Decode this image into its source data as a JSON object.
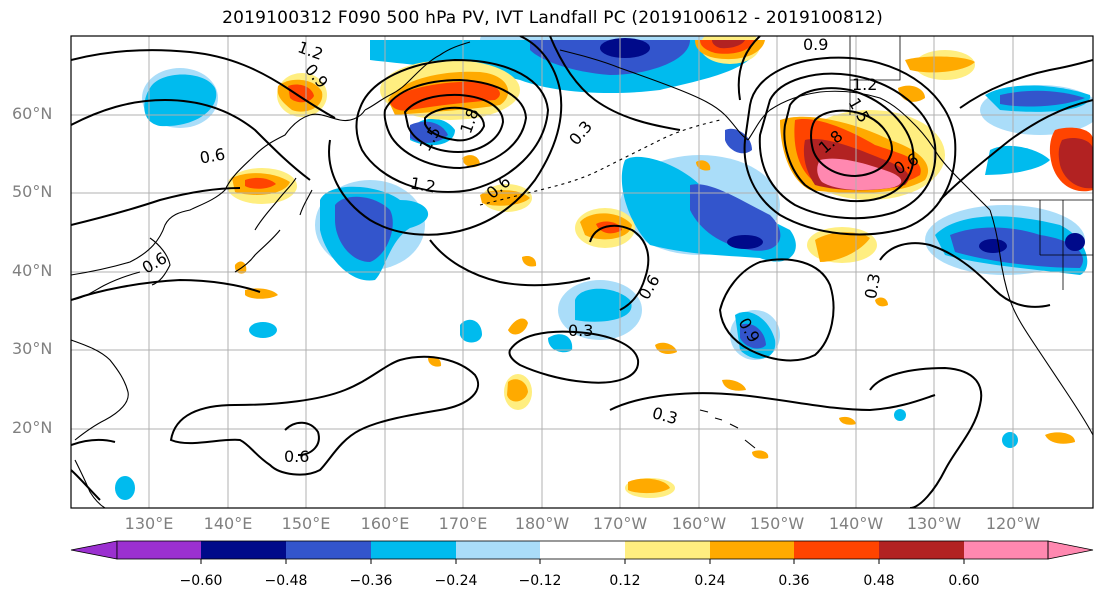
{
  "title": "2019100312 F090 500 hPa PV, IVT Landfall PC (2019100612 - 2019100812)",
  "lat_labels": [
    "60°N",
    "50°N",
    "40°N",
    "30°N",
    "20°N"
  ],
  "lon_labels": [
    "130°E",
    "140°E",
    "150°E",
    "160°E",
    "170°E",
    "180°W",
    "170°W",
    "160°W",
    "150°W",
    "140°W",
    "130°W",
    "120°W"
  ],
  "contour_labels": [
    "1.2",
    "0.9",
    "0.6",
    "1.8",
    "1.5",
    "1.2",
    "0.6",
    "0.3",
    "0.9",
    "1.2",
    "1.5",
    "1.8",
    "0.6",
    "0.6",
    "0.3",
    "0.6",
    "0.9",
    "0.3",
    "0.3",
    "0.6"
  ],
  "colorbar": {
    "ticks": [
      "−0.60",
      "−0.48",
      "−0.36",
      "−0.24",
      "−0.12",
      "0.12",
      "0.24",
      "0.36",
      "0.48",
      "0.60"
    ],
    "colors": [
      "#9b30d0",
      "#000a8a",
      "#3355cc",
      "#00bbee",
      "#aaddf9",
      "#ffffff",
      "#ffee80",
      "#ffaa00",
      "#ff4400",
      "#b22222",
      "#ff88b0"
    ]
  },
  "colors": {
    "land_line": "#000000",
    "grid": "#b0b0b0",
    "axis_label": "#808080"
  }
}
